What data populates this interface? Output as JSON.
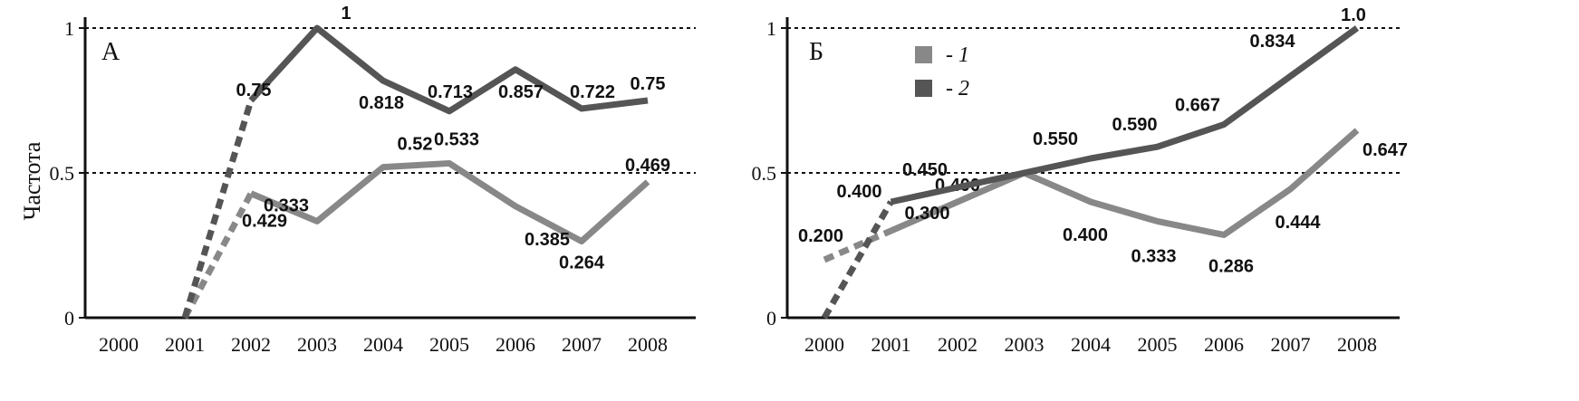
{
  "y_axis_label": "Частота",
  "chart_data": [
    {
      "type": "line",
      "panel_label": "А",
      "x": [
        "2000",
        "2001",
        "2002",
        "2003",
        "2004",
        "2005",
        "2006",
        "2007",
        "2008"
      ],
      "ylim": [
        0,
        1
      ],
      "yticks": [
        "0",
        "0.5",
        "1"
      ],
      "reference_lines": [
        0.5,
        1
      ],
      "grid": false,
      "series": [
        {
          "color": "#888888",
          "dashed_segment_x": [
            "2001",
            "2002"
          ],
          "points": [
            {
              "x": "2001",
              "y": 0
            },
            {
              "x": "2002",
              "y": 0.429,
              "label": "0.429"
            },
            {
              "x": "2003",
              "y": 0.333,
              "label": "0.333"
            },
            {
              "x": "2004",
              "y": 0.52,
              "label": "0.52"
            },
            {
              "x": "2005",
              "y": 0.533,
              "label": "0.533"
            },
            {
              "x": "2006",
              "y": 0.385,
              "label": "0.385"
            },
            {
              "x": "2007",
              "y": 0.264,
              "label": "0.264"
            },
            {
              "x": "2008",
              "y": 0.469,
              "label": "0.469"
            }
          ]
        },
        {
          "color": "#555555",
          "dashed_segment_x": [
            "2001",
            "2002"
          ],
          "points": [
            {
              "x": "2001",
              "y": 0
            },
            {
              "x": "2002",
              "y": 0.75,
              "label": "0.75"
            },
            {
              "x": "2003",
              "y": 1,
              "label": "1"
            },
            {
              "x": "2004",
              "y": 0.818,
              "label": "0.818"
            },
            {
              "x": "2005",
              "y": 0.713,
              "label": "0.713"
            },
            {
              "x": "2006",
              "y": 0.857,
              "label": "0.857"
            },
            {
              "x": "2007",
              "y": 0.722,
              "label": "0.722"
            },
            {
              "x": "2008",
              "y": 0.75,
              "label": "0.75"
            }
          ]
        }
      ]
    },
    {
      "type": "line",
      "panel_label": "Б",
      "x": [
        "2000",
        "2001",
        "2002",
        "2003",
        "2004",
        "2005",
        "2006",
        "2007",
        "2008"
      ],
      "ylim": [
        0,
        1
      ],
      "yticks": [
        "0",
        "0.5",
        "1"
      ],
      "reference_lines": [
        0.5,
        1
      ],
      "grid": false,
      "legend": {
        "position": "top-left",
        "entries": [
          {
            "label": "- 1",
            "color": "#888888"
          },
          {
            "label": "- 2",
            "color": "#555555"
          }
        ]
      },
      "series": [
        {
          "name": "- 1",
          "color": "#888888",
          "dashed_segment_x": [
            "2000",
            "2001"
          ],
          "points": [
            {
              "x": "2000",
              "y": 0.2,
              "label": "0.200"
            },
            {
              "x": "2001",
              "y": 0.3,
              "label": "0.300"
            },
            {
              "x": "2002",
              "y": 0.4,
              "label": "0.400"
            },
            {
              "x": "2003",
              "y": 0.5
            },
            {
              "x": "2004",
              "y": 0.4,
              "label": "0.400"
            },
            {
              "x": "2005",
              "y": 0.333,
              "label": "0.333"
            },
            {
              "x": "2006",
              "y": 0.286,
              "label": "0.286"
            },
            {
              "x": "2007",
              "y": 0.444,
              "label": "0.444"
            },
            {
              "x": "2008",
              "y": 0.647,
              "label": "0.647"
            }
          ]
        },
        {
          "name": "- 2",
          "color": "#555555",
          "dashed_segment_x": [
            "2000",
            "2001"
          ],
          "points": [
            {
              "x": "2000",
              "y": 0
            },
            {
              "x": "2001",
              "y": 0.4,
              "label": "0.400"
            },
            {
              "x": "2002",
              "y": 0.45,
              "label": "0.450"
            },
            {
              "x": "2003",
              "y": 0.5
            },
            {
              "x": "2004",
              "y": 0.55,
              "label": "0.550"
            },
            {
              "x": "2005",
              "y": 0.59,
              "label": "0.590"
            },
            {
              "x": "2006",
              "y": 0.667,
              "label": "0.667"
            },
            {
              "x": "2007",
              "y": 0.834,
              "label": "0.834"
            },
            {
              "x": "2008",
              "y": 1.0,
              "label": "1.0"
            }
          ]
        }
      ]
    }
  ]
}
